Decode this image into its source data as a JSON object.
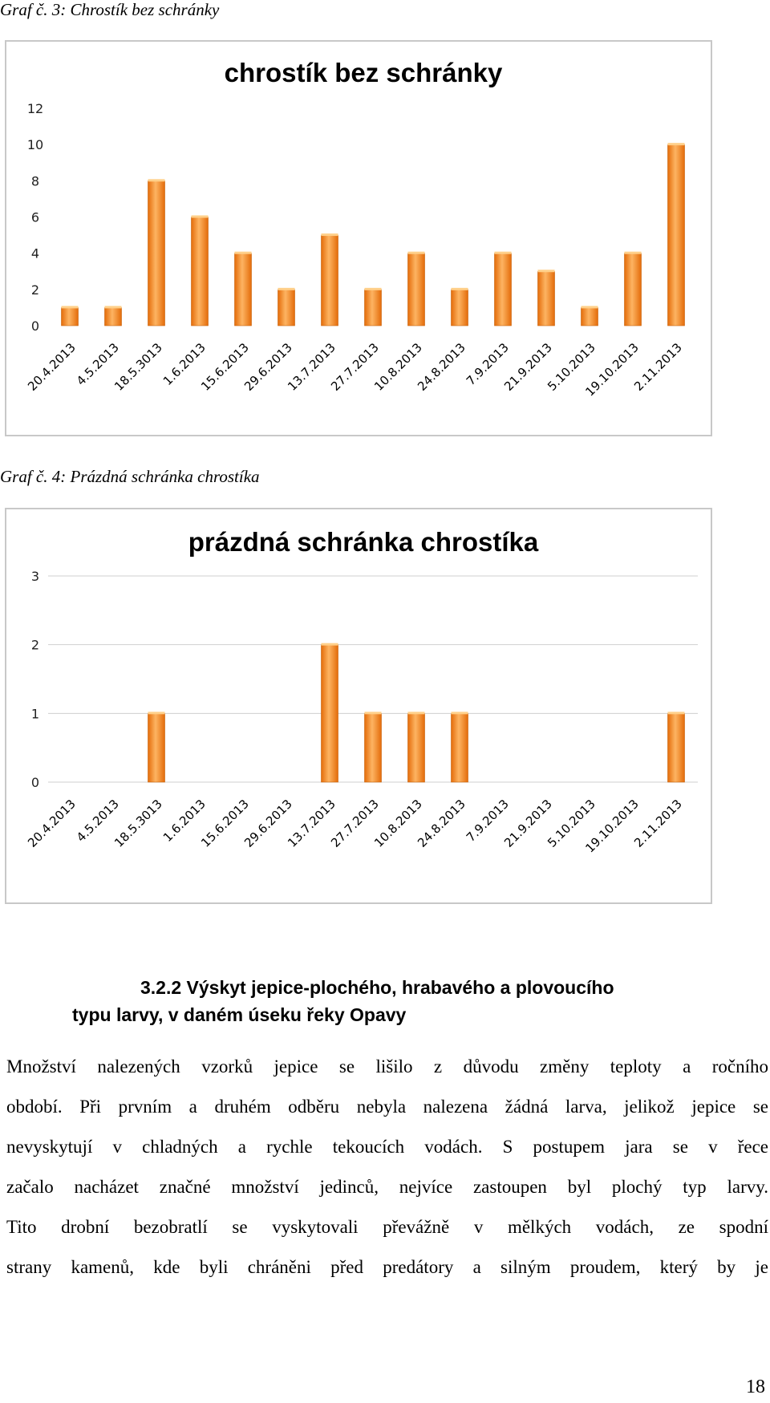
{
  "captions": {
    "graph3": "Graf č. 3: Chrostík bez schránky",
    "graph4": "Graf č. 4: Prázdná schránka chrostíka"
  },
  "chart_data": [
    {
      "type": "bar",
      "title": "chrostík bez schránky",
      "categories": [
        "20.4.2013",
        "4.5.2013",
        "18.5.3013",
        "1.6.2013",
        "15.6.2013",
        "29.6.2013",
        "13.7.2013",
        "27.7.2013",
        "10.8.2013",
        "24.8.2013",
        "7.9.2013",
        "21.9.2013",
        "5.10.2013",
        "19.10.2013",
        "2.11.2013"
      ],
      "values": [
        1,
        1,
        8,
        6,
        4,
        2,
        5,
        2,
        4,
        2,
        4,
        3,
        1,
        4,
        10
      ],
      "ylim": [
        0,
        12
      ],
      "yticks": [
        0,
        2,
        4,
        6,
        8,
        10,
        12
      ],
      "grid": false,
      "bar_color": "#f7931e"
    },
    {
      "type": "bar",
      "title": "prázdná schránka chrostíka",
      "categories": [
        "20.4.2013",
        "4.5.2013",
        "18.5.3013",
        "1.6.2013",
        "15.6.2013",
        "29.6.2013",
        "13.7.2013",
        "27.7.2013",
        "10.8.2013",
        "24.8.2013",
        "7.9.2013",
        "21.9.2013",
        "5.10.2013",
        "19.10.2013",
        "2.11.2013"
      ],
      "values": [
        0,
        0,
        1,
        0,
        0,
        0,
        2,
        1,
        1,
        1,
        0,
        0,
        0,
        0,
        1
      ],
      "ylim": [
        0,
        3
      ],
      "yticks": [
        0,
        1,
        2,
        3
      ],
      "grid": true,
      "bar_color": "#f7931e"
    }
  ],
  "section": {
    "heading_line1": "3.2.2 Výskyt jepice-plochého, hrabavého a plovoucího",
    "heading_line2": "typu larvy, v daném úseku řeky Opavy",
    "paragraph_lines": [
      "Množství nalezených vzorků jepice se lišilo z důvodu změny teploty a ročního",
      "období. Při prvním a druhém odběru nebyla nalezena žádná larva, jelikož jepice se",
      "nevyskytují v chladných a rychle tekoucích vodách. S postupem jara se v řece",
      "začalo nacházet značné množství jedinců, nejvíce zastoupen byl plochý typ larvy.",
      "Tito drobní bezobratlí se vyskytovali převážně v mělkých vodách, ze spodní",
      "strany kamenů, kde byli chráněni před predátory a silným proudem, který by je"
    ]
  },
  "page_number": "18"
}
